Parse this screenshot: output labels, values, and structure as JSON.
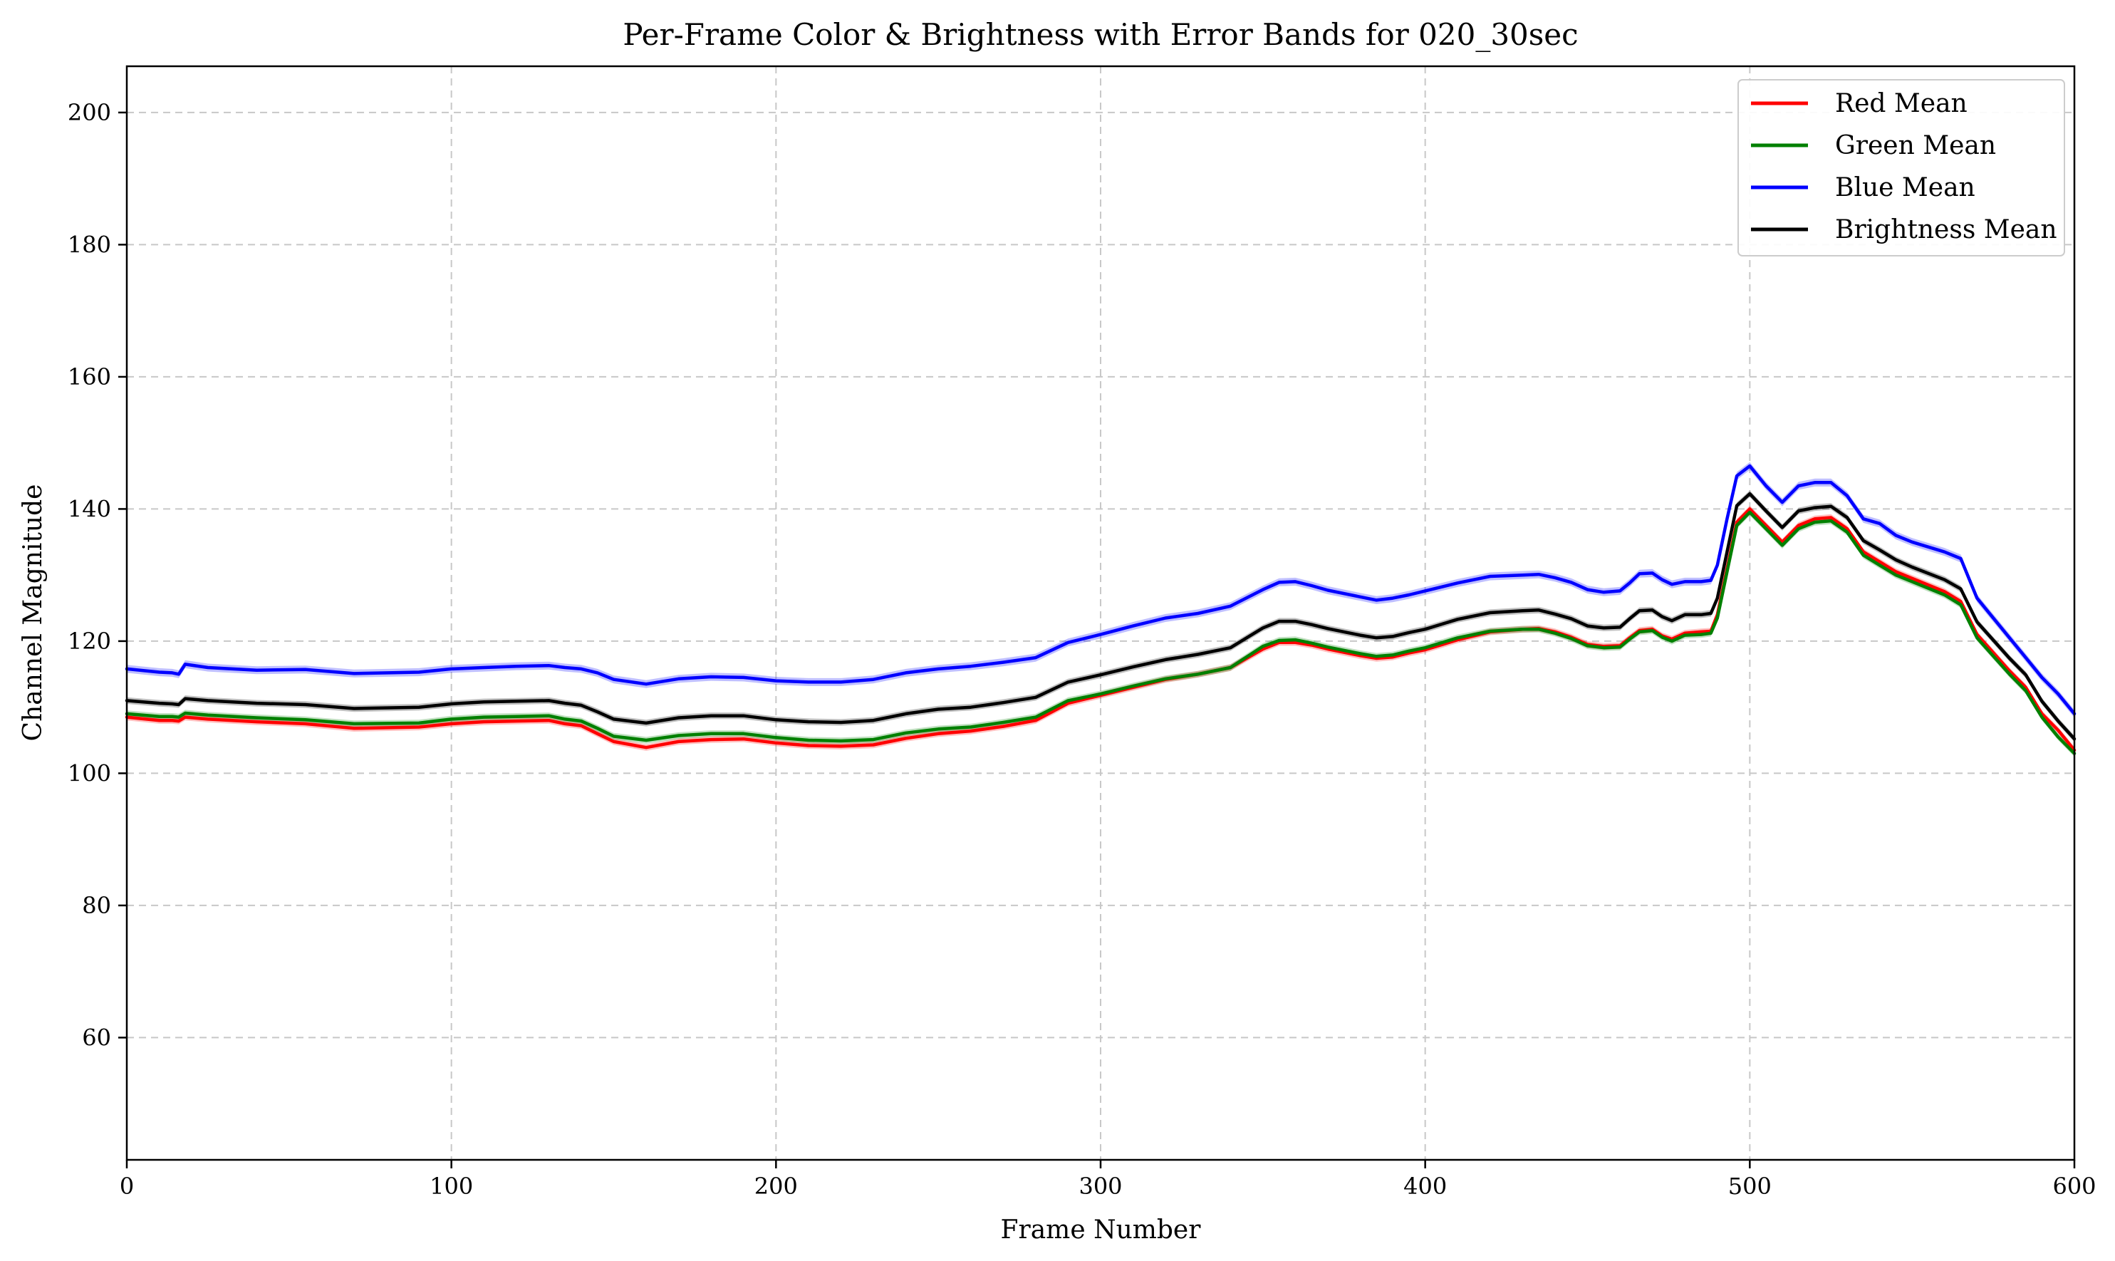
{
  "chart_data": {
    "type": "line",
    "title": "Per-Frame Color & Brightness with Error Bands for 020_30sec",
    "xlabel": "Frame Number",
    "ylabel": "Channel Magnitude",
    "xlim": [
      0,
      600
    ],
    "ylim": [
      41.5,
      207
    ],
    "xticks": [
      0,
      100,
      200,
      300,
      400,
      500,
      600
    ],
    "yticks": [
      60,
      80,
      100,
      120,
      140,
      160,
      180,
      200
    ],
    "grid": true,
    "legend_position": "top-right",
    "x": [
      0,
      10,
      14,
      16,
      18,
      25,
      40,
      55,
      70,
      90,
      100,
      110,
      120,
      130,
      135,
      140,
      145,
      150,
      160,
      170,
      180,
      190,
      200,
      210,
      220,
      230,
      240,
      250,
      260,
      270,
      280,
      290,
      300,
      310,
      320,
      330,
      340,
      350,
      355,
      360,
      365,
      370,
      380,
      385,
      390,
      395,
      400,
      410,
      420,
      430,
      435,
      440,
      445,
      450,
      455,
      460,
      463,
      466,
      470,
      473,
      476,
      480,
      485,
      488,
      490,
      493,
      496,
      500,
      505,
      510,
      515,
      520,
      525,
      530,
      535,
      540,
      545,
      550,
      560,
      565,
      570,
      580,
      585,
      590,
      595,
      600
    ],
    "series": [
      {
        "name": "Red Mean",
        "color": "#ff0000",
        "values": [
          108.5,
          108.0,
          108.0,
          107.9,
          108.5,
          108.2,
          107.8,
          107.5,
          106.8,
          107.0,
          107.5,
          107.8,
          107.9,
          108.0,
          107.5,
          107.2,
          106.0,
          104.8,
          103.9,
          104.8,
          105.1,
          105.2,
          104.6,
          104.2,
          104.1,
          104.3,
          105.3,
          106.0,
          106.4,
          107.1,
          108.0,
          110.6,
          111.8,
          113.0,
          114.2,
          115.0,
          116.0,
          118.8,
          119.8,
          119.8,
          119.4,
          118.8,
          117.8,
          117.4,
          117.6,
          118.2,
          118.7,
          120.2,
          121.4,
          121.8,
          121.9,
          121.4,
          120.6,
          119.5,
          119.2,
          119.3,
          120.5,
          121.6,
          121.8,
          120.8,
          120.3,
          121.2,
          121.4,
          121.5,
          124.0,
          131.0,
          138.0,
          140.0,
          137.5,
          135.0,
          137.5,
          138.5,
          138.7,
          137.0,
          133.5,
          132.0,
          130.5,
          129.5,
          127.5,
          126.0,
          121.0,
          115.5,
          113.0,
          109.0,
          106.5,
          103.5
        ]
      },
      {
        "name": "Green Mean",
        "color": "#008000",
        "values": [
          109.0,
          108.6,
          108.6,
          108.5,
          109.1,
          108.8,
          108.4,
          108.1,
          107.5,
          107.6,
          108.2,
          108.5,
          108.6,
          108.7,
          108.2,
          107.9,
          106.8,
          105.6,
          105.0,
          105.7,
          106.0,
          106.0,
          105.4,
          105.0,
          104.9,
          105.1,
          106.1,
          106.7,
          107.0,
          107.7,
          108.5,
          111.0,
          112.0,
          113.2,
          114.3,
          115.0,
          116.0,
          119.2,
          120.1,
          120.2,
          119.7,
          119.1,
          118.1,
          117.7,
          117.9,
          118.5,
          119.0,
          120.5,
          121.5,
          121.8,
          121.8,
          121.2,
          120.4,
          119.3,
          119.0,
          119.1,
          120.3,
          121.4,
          121.6,
          120.6,
          120.0,
          120.9,
          121.0,
          121.2,
          123.5,
          130.5,
          137.5,
          139.5,
          137.0,
          134.5,
          137.0,
          138.0,
          138.2,
          136.5,
          133.0,
          131.5,
          130.0,
          129.0,
          127.0,
          125.5,
          120.5,
          115.0,
          112.5,
          108.5,
          105.5,
          103.0
        ]
      },
      {
        "name": "Blue Mean",
        "color": "#0000ff",
        "values": [
          115.8,
          115.3,
          115.2,
          115.0,
          116.5,
          116.0,
          115.6,
          115.7,
          115.1,
          115.3,
          115.8,
          116.0,
          116.2,
          116.3,
          116.0,
          115.8,
          115.2,
          114.2,
          113.5,
          114.3,
          114.6,
          114.5,
          114.0,
          113.8,
          113.8,
          114.2,
          115.2,
          115.8,
          116.2,
          116.8,
          117.5,
          119.8,
          121.0,
          122.3,
          123.5,
          124.2,
          125.3,
          127.8,
          128.9,
          129.0,
          128.4,
          127.7,
          126.7,
          126.2,
          126.5,
          127.0,
          127.6,
          128.8,
          129.8,
          130.0,
          130.1,
          129.6,
          128.9,
          127.8,
          127.4,
          127.6,
          128.8,
          130.2,
          130.3,
          129.3,
          128.6,
          129.0,
          129.0,
          129.2,
          131.5,
          138.5,
          145.0,
          146.5,
          143.5,
          141.0,
          143.5,
          144.0,
          144.0,
          142.0,
          138.5,
          137.8,
          136.0,
          135.0,
          133.5,
          132.5,
          126.5,
          120.5,
          117.5,
          114.5,
          112.0,
          109.0
        ]
      },
      {
        "name": "Brightness Mean",
        "color": "#000000",
        "values": [
          111.0,
          110.6,
          110.5,
          110.4,
          111.3,
          111.0,
          110.6,
          110.4,
          109.8,
          110.0,
          110.5,
          110.8,
          110.9,
          111.0,
          110.6,
          110.3,
          109.3,
          108.2,
          107.6,
          108.4,
          108.7,
          108.7,
          108.1,
          107.8,
          107.7,
          108.0,
          109.0,
          109.7,
          110.0,
          110.7,
          111.5,
          113.8,
          114.9,
          116.1,
          117.2,
          118.0,
          119.0,
          122.0,
          123.0,
          123.0,
          122.5,
          121.9,
          120.9,
          120.5,
          120.7,
          121.3,
          121.8,
          123.3,
          124.3,
          124.6,
          124.7,
          124.1,
          123.4,
          122.3,
          122.0,
          122.1,
          123.4,
          124.6,
          124.7,
          123.7,
          123.1,
          124.0,
          124.0,
          124.2,
          126.5,
          133.5,
          140.5,
          142.3,
          139.7,
          137.2,
          139.7,
          140.2,
          140.4,
          138.7,
          135.2,
          133.8,
          132.3,
          131.2,
          129.3,
          127.9,
          122.9,
          117.4,
          114.9,
          110.9,
          107.9,
          105.2
        ]
      }
    ],
    "band_halfwidth": [
      0.5,
      0.5,
      0.6,
      0.5
    ]
  }
}
